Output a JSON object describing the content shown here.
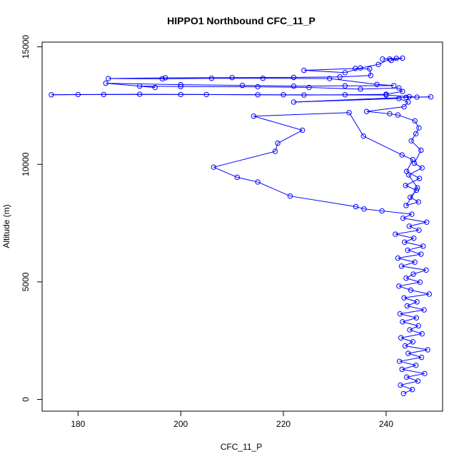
{
  "chart_data": {
    "type": "line",
    "title": "HIPPO1 Northbound CFC_11_P",
    "xlabel": "CFC_11_P",
    "ylabel": "Altitude (m)",
    "xlim": [
      173,
      251
    ],
    "ylim": [
      -500,
      15200
    ],
    "xticks": [
      180,
      200,
      220,
      240
    ],
    "yticks": [
      0,
      5000,
      10000,
      15000
    ],
    "grid": false,
    "legend": "none",
    "series_color": "#0000ff",
    "marker": "open-circle",
    "series": [
      {
        "values": [
          [
            243.4,
            250
          ],
          [
            245.1,
            420
          ],
          [
            242.8,
            610
          ],
          [
            246.2,
            780
          ],
          [
            244.0,
            950
          ],
          [
            247.5,
            1100
          ],
          [
            243.1,
            1280
          ],
          [
            245.8,
            1450
          ],
          [
            242.6,
            1620
          ],
          [
            246.9,
            1790
          ],
          [
            244.3,
            1960
          ],
          [
            248.1,
            2110
          ],
          [
            243.7,
            2280
          ],
          [
            245.2,
            2450
          ],
          [
            242.9,
            2620
          ],
          [
            247.0,
            2790
          ],
          [
            244.6,
            2960
          ],
          [
            246.3,
            3130
          ],
          [
            243.2,
            3300
          ],
          [
            245.9,
            3470
          ],
          [
            242.7,
            3640
          ],
          [
            247.4,
            3810
          ],
          [
            244.1,
            3980
          ],
          [
            246.0,
            4150
          ],
          [
            243.5,
            4320
          ],
          [
            248.4,
            4480
          ],
          [
            244.8,
            4650
          ],
          [
            242.5,
            4820
          ],
          [
            246.6,
            4990
          ],
          [
            243.9,
            5160
          ],
          [
            245.3,
            5330
          ],
          [
            247.8,
            5500
          ],
          [
            243.0,
            5670
          ],
          [
            245.6,
            5840
          ],
          [
            242.3,
            6010
          ],
          [
            246.8,
            6180
          ],
          [
            244.2,
            6350
          ],
          [
            247.2,
            6520
          ],
          [
            243.6,
            6690
          ],
          [
            245.4,
            6860
          ],
          [
            241.8,
            7030
          ],
          [
            246.4,
            7200
          ],
          [
            244.5,
            7370
          ],
          [
            247.9,
            7540
          ],
          [
            243.3,
            7710
          ],
          [
            245.0,
            7880
          ],
          [
            239.2,
            8020
          ],
          [
            235.7,
            8100
          ],
          [
            234.1,
            8200
          ],
          [
            221.3,
            8650
          ],
          [
            215.0,
            9250
          ],
          [
            211.0,
            9450
          ],
          [
            206.4,
            9880
          ],
          [
            218.4,
            10550
          ],
          [
            218.9,
            10900
          ],
          [
            223.7,
            11450
          ],
          [
            214.2,
            12050
          ],
          [
            232.8,
            12200
          ],
          [
            235.6,
            11200
          ],
          [
            243.1,
            10400
          ],
          [
            245.2,
            10200
          ],
          [
            244.0,
            9700
          ],
          [
            246.5,
            9400
          ],
          [
            243.8,
            9100
          ],
          [
            245.9,
            8900
          ],
          [
            244.7,
            8600
          ],
          [
            246.3,
            8400
          ],
          [
            243.9,
            8250
          ],
          [
            246.1,
            9000
          ],
          [
            244.4,
            9550
          ],
          [
            247.0,
            9850
          ],
          [
            245.5,
            10050
          ],
          [
            246.8,
            10600
          ],
          [
            244.9,
            11000
          ],
          [
            245.8,
            11300
          ],
          [
            246.4,
            11550
          ],
          [
            245.6,
            11850
          ],
          [
            242.3,
            12100
          ],
          [
            240.7,
            12150
          ],
          [
            236.2,
            12250
          ],
          [
            243.5,
            12450
          ],
          [
            244.3,
            12650
          ],
          [
            242.5,
            12800
          ],
          [
            222.0,
            12650
          ],
          [
            243.9,
            12850
          ],
          [
            248.7,
            12870
          ],
          [
            246.0,
            12860
          ],
          [
            244.5,
            12880
          ],
          [
            240.0,
            12950
          ],
          [
            220.0,
            12960
          ],
          [
            200.0,
            12970
          ],
          [
            185.0,
            12970
          ],
          [
            174.8,
            12960
          ],
          [
            180.0,
            12970
          ],
          [
            192.0,
            12980
          ],
          [
            205.0,
            12970
          ],
          [
            215.0,
            12960
          ],
          [
            224.0,
            12950
          ],
          [
            232.0,
            12960
          ],
          [
            240.0,
            12980
          ],
          [
            243.2,
            13100
          ],
          [
            242.5,
            13250
          ],
          [
            235.0,
            13200
          ],
          [
            225.0,
            13270
          ],
          [
            215.0,
            13300
          ],
          [
            200.0,
            13310
          ],
          [
            192.0,
            13330
          ],
          [
            195.0,
            13270
          ],
          [
            185.4,
            13450
          ],
          [
            200.0,
            13390
          ],
          [
            212.0,
            13360
          ],
          [
            222.0,
            13330
          ],
          [
            232.0,
            13340
          ],
          [
            241.5,
            13350
          ],
          [
            238.2,
            13400
          ],
          [
            229.0,
            13650
          ],
          [
            216.0,
            13660
          ],
          [
            206.0,
            13660
          ],
          [
            196.4,
            13640
          ],
          [
            185.9,
            13650
          ],
          [
            197.0,
            13680
          ],
          [
            210.0,
            13690
          ],
          [
            222.0,
            13700
          ],
          [
            231.0,
            13720
          ],
          [
            237.0,
            13780
          ],
          [
            236.8,
            14060
          ],
          [
            234.0,
            14080
          ],
          [
            224.0,
            14000
          ],
          [
            232.0,
            13900
          ],
          [
            235.0,
            14100
          ],
          [
            238.5,
            14250
          ],
          [
            240.7,
            14480
          ],
          [
            242.0,
            14510
          ],
          [
            241.0,
            14420
          ],
          [
            243.2,
            14520
          ],
          [
            239.3,
            14480
          ]
        ]
      }
    ]
  }
}
